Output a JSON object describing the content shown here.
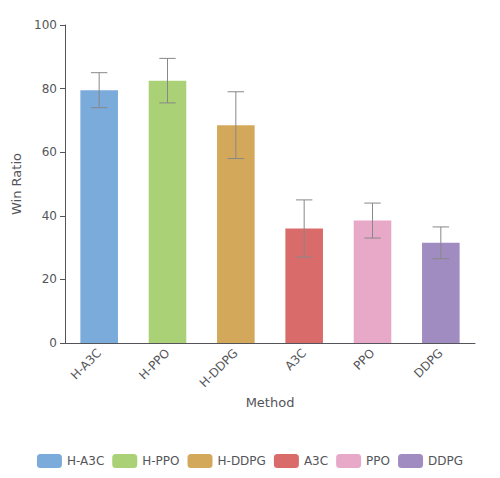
{
  "chart_data": {
    "type": "bar",
    "categories": [
      "H-A3C",
      "H-PPO",
      "H-DDPG",
      "A3C",
      "PPO",
      "DDPG"
    ],
    "values": [
      79.5,
      82.5,
      68.5,
      36.0,
      38.5,
      31.5
    ],
    "errors": [
      5.5,
      7.0,
      10.5,
      9.0,
      5.5,
      5.0
    ],
    "colors": [
      "#7aabdb",
      "#aad175",
      "#d4a85a",
      "#d96b6b",
      "#e8a8c8",
      "#a08cc0"
    ],
    "xlabel": "Method",
    "ylabel": "Win Ratio",
    "ylim": [
      0,
      100
    ],
    "yticks": [
      0,
      20,
      40,
      60,
      80,
      100
    ],
    "grid": false,
    "legend": "bottom"
  }
}
